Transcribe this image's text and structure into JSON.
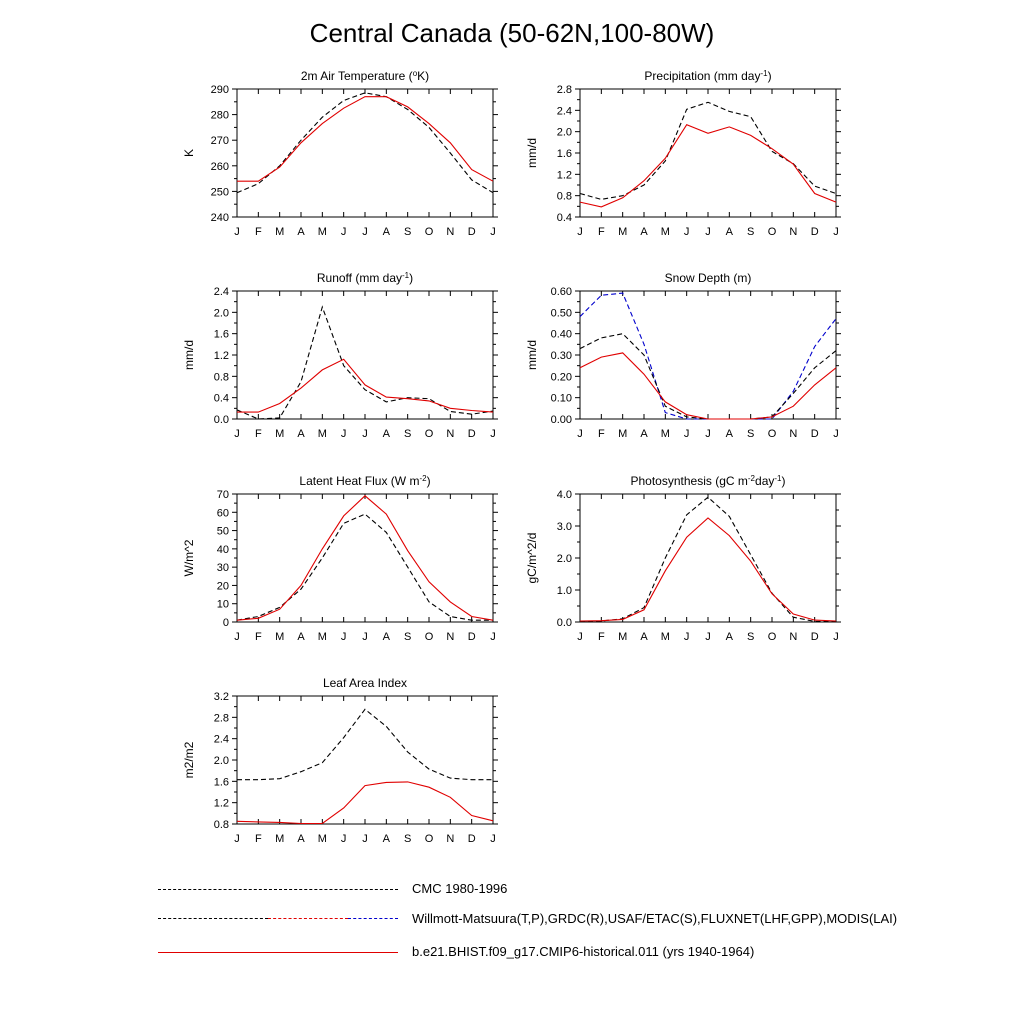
{
  "title": "Central Canada (50-62N,100-80W)",
  "colors": {
    "obs": "#000000",
    "obs_alt": "#0000cc",
    "model": "#e00000"
  },
  "legend": [
    {
      "label": "CMC 1980-1996",
      "style": "dashed",
      "color": "#000000"
    },
    {
      "label": "Willmott-Matsuura(T,P),GRDC(R),USAF/ETAC(S),FLUXNET(LHF,GPP),MODIS(LAI)",
      "style": "dashed-multicolor",
      "color": "#000000",
      "color_alt": "#0000cc"
    },
    {
      "label": "b.e21.BHIST.f09_g17.CMIP6-historical.011 (yrs 1940-1964)",
      "style": "solid",
      "color": "#e00000"
    }
  ],
  "chart_data": [
    {
      "type": "line",
      "title_parts": [
        [
          "2m Air Temperature (",
          ""
        ],
        [
          "o",
          "sup"
        ],
        [
          "K)",
          ""
        ]
      ],
      "ylabel": "K",
      "x": [
        "J",
        "F",
        "M",
        "A",
        "M",
        "J",
        "J",
        "A",
        "S",
        "O",
        "N",
        "D",
        "J"
      ],
      "ylim": [
        240,
        290
      ],
      "yticks": [
        "240",
        "250",
        "260",
        "270",
        "280",
        "290"
      ],
      "series": [
        {
          "style": "dashed",
          "color": "#000000",
          "values": [
            249.5,
            253,
            260,
            270,
            279,
            285.5,
            288.5,
            287,
            282,
            275,
            265,
            254.5,
            249.5
          ]
        },
        {
          "style": "solid",
          "color": "#e00000",
          "values": [
            254,
            254,
            259.5,
            269,
            276.5,
            282.5,
            287,
            287,
            283,
            276.5,
            269,
            258.5,
            254
          ]
        }
      ]
    },
    {
      "type": "line",
      "title_parts": [
        [
          "Precipitation (mm day",
          ""
        ],
        [
          "-1",
          "sup"
        ],
        [
          ")",
          ""
        ]
      ],
      "ylabel": "mm/d",
      "x": [
        "J",
        "F",
        "M",
        "A",
        "M",
        "J",
        "J",
        "A",
        "S",
        "O",
        "N",
        "D",
        "J"
      ],
      "ylim": [
        0.4,
        2.8
      ],
      "yticks": [
        "0.4",
        "0.8",
        "1.2",
        "1.6",
        "2.0",
        "2.4",
        "2.8"
      ],
      "series": [
        {
          "style": "dashed",
          "color": "#000000",
          "values": [
            0.84,
            0.73,
            0.8,
            1.0,
            1.45,
            2.42,
            2.55,
            2.38,
            2.28,
            1.63,
            1.4,
            0.98,
            0.84
          ]
        },
        {
          "style": "solid",
          "color": "#e00000",
          "values": [
            0.68,
            0.59,
            0.76,
            1.08,
            1.5,
            2.13,
            1.97,
            2.09,
            1.93,
            1.68,
            1.39,
            0.84,
            0.68
          ]
        }
      ]
    },
    {
      "type": "line",
      "title_parts": [
        [
          "Runoff (mm day",
          ""
        ],
        [
          "-1",
          "sup"
        ],
        [
          ")",
          ""
        ]
      ],
      "ylabel": "mm/d",
      "x": [
        "J",
        "F",
        "M",
        "A",
        "M",
        "J",
        "J",
        "A",
        "S",
        "O",
        "N",
        "D",
        "J"
      ],
      "ylim": [
        0.0,
        2.4
      ],
      "yticks": [
        "0.0",
        "0.4",
        "0.8",
        "1.2",
        "1.6",
        "2.0",
        "2.4"
      ],
      "series": [
        {
          "style": "dashed",
          "color": "#000000",
          "values": [
            0.17,
            0.0,
            0.02,
            0.7,
            2.1,
            1.0,
            0.55,
            0.32,
            0.4,
            0.38,
            0.14,
            0.09,
            0.15
          ]
        },
        {
          "style": "solid",
          "color": "#e00000",
          "values": [
            0.13,
            0.13,
            0.29,
            0.58,
            0.92,
            1.12,
            0.64,
            0.41,
            0.38,
            0.34,
            0.2,
            0.16,
            0.13
          ]
        }
      ]
    },
    {
      "type": "line",
      "title_parts": [
        [
          "Snow Depth (m)",
          ""
        ]
      ],
      "ylabel": "mm/d",
      "x": [
        "J",
        "F",
        "M",
        "A",
        "M",
        "J",
        "J",
        "A",
        "S",
        "O",
        "N",
        "D",
        "J"
      ],
      "ylim": [
        0.0,
        0.6
      ],
      "yticks": [
        "0.00",
        "0.10",
        "0.20",
        "0.30",
        "0.40",
        "0.50",
        "0.60"
      ],
      "series": [
        {
          "style": "dashed",
          "color": "#0000cc",
          "values": [
            0.48,
            0.58,
            0.59,
            0.35,
            0.03,
            0.0,
            0.0,
            0.0,
            0.0,
            0.0,
            0.13,
            0.34,
            0.47
          ]
        },
        {
          "style": "dashed",
          "color": "#000000",
          "values": [
            0.33,
            0.38,
            0.4,
            0.3,
            0.06,
            0.01,
            0.0,
            0.0,
            0.0,
            0.01,
            0.12,
            0.24,
            0.32
          ]
        },
        {
          "style": "solid",
          "color": "#e00000",
          "values": [
            0.24,
            0.29,
            0.31,
            0.21,
            0.08,
            0.02,
            0.0,
            0.0,
            0.0,
            0.01,
            0.06,
            0.16,
            0.24
          ]
        }
      ]
    },
    {
      "type": "line",
      "title_parts": [
        [
          "Latent Heat Flux (W m",
          ""
        ],
        [
          "-2",
          "sup"
        ],
        [
          ")",
          ""
        ]
      ],
      "ylabel": "W/m^2",
      "x": [
        "J",
        "F",
        "M",
        "A",
        "M",
        "J",
        "J",
        "A",
        "S",
        "O",
        "N",
        "D",
        "J"
      ],
      "ylim": [
        0,
        70
      ],
      "yticks": [
        "0",
        "10",
        "20",
        "30",
        "40",
        "50",
        "60",
        "70"
      ],
      "series": [
        {
          "style": "dashed",
          "color": "#000000",
          "values": [
            1,
            3,
            8,
            18,
            35,
            54,
            59,
            49,
            30,
            11,
            3,
            1,
            1
          ]
        },
        {
          "style": "solid",
          "color": "#e00000",
          "values": [
            1,
            2,
            7,
            20,
            40,
            58,
            69,
            59,
            39,
            22,
            11,
            3,
            1
          ]
        }
      ]
    },
    {
      "type": "line",
      "title_parts": [
        [
          "Photosynthesis (gC m",
          ""
        ],
        [
          "-2",
          "sup"
        ],
        [
          "day",
          ""
        ],
        [
          "-1",
          "sup"
        ],
        [
          ")",
          ""
        ]
      ],
      "ylabel": "gC/m^2/d",
      "x": [
        "J",
        "F",
        "M",
        "A",
        "M",
        "J",
        "J",
        "A",
        "S",
        "O",
        "N",
        "D",
        "J"
      ],
      "ylim": [
        0.0,
        4.0
      ],
      "yticks": [
        "0.0",
        "1.0",
        "2.0",
        "3.0",
        "4.0"
      ],
      "series": [
        {
          "style": "dashed",
          "color": "#000000",
          "values": [
            0.02,
            0.03,
            0.1,
            0.45,
            2.0,
            3.35,
            3.9,
            3.3,
            2.1,
            0.9,
            0.15,
            0.02,
            0.02
          ]
        },
        {
          "style": "solid",
          "color": "#e00000",
          "values": [
            0.03,
            0.04,
            0.08,
            0.38,
            1.6,
            2.65,
            3.25,
            2.7,
            1.9,
            0.88,
            0.25,
            0.06,
            0.03
          ]
        }
      ]
    },
    {
      "type": "line",
      "title_parts": [
        [
          "Leaf Area Index",
          ""
        ]
      ],
      "ylabel": "m2/m2",
      "x": [
        "J",
        "F",
        "M",
        "A",
        "M",
        "J",
        "J",
        "A",
        "S",
        "O",
        "N",
        "D",
        "J"
      ],
      "ylim": [
        0.8,
        3.2
      ],
      "yticks": [
        "0.8",
        "1.2",
        "1.6",
        "2.0",
        "2.4",
        "2.8",
        "3.2"
      ],
      "series": [
        {
          "style": "dashed",
          "color": "#000000",
          "values": [
            1.63,
            1.63,
            1.65,
            1.78,
            1.95,
            2.42,
            2.95,
            2.63,
            2.15,
            1.83,
            1.66,
            1.63,
            1.63
          ]
        },
        {
          "style": "solid",
          "color": "#e00000",
          "values": [
            0.85,
            0.84,
            0.83,
            0.81,
            0.81,
            1.1,
            1.52,
            1.58,
            1.59,
            1.49,
            1.3,
            0.96,
            0.86
          ]
        }
      ]
    }
  ]
}
